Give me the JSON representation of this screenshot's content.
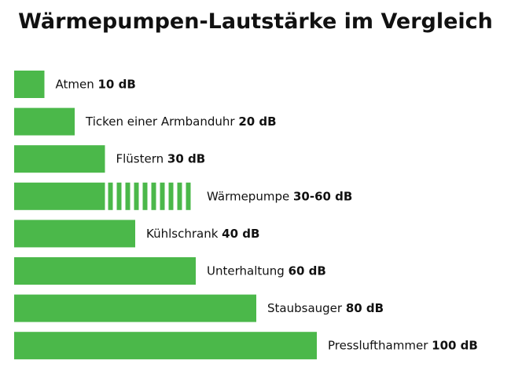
{
  "colors": {
    "bar": "#4bb84a",
    "text": "#111111",
    "background": "#ffffff"
  },
  "chart_data": {
    "type": "bar",
    "orientation": "horizontal",
    "title": "Wärmepumpen-Lautstärke im Vergleich",
    "unit": "dB",
    "bars": [
      {
        "name": "Atmen",
        "value": 10,
        "value_label": "10 dB"
      },
      {
        "name": "Ticken einer Armbanduhr",
        "value": 20,
        "value_label": "20 dB"
      },
      {
        "name": "Flüstern",
        "value": 30,
        "value_label": "30 dB"
      },
      {
        "name": "Wärmepumpe",
        "value": 30,
        "range_max": 60,
        "value_label": "30-60 dB"
      },
      {
        "name": "Kühlschrank",
        "value": 40,
        "value_label": "40 dB"
      },
      {
        "name": "Unterhaltung",
        "value": 60,
        "value_label": "60 dB"
      },
      {
        "name": "Staubsauger",
        "value": 80,
        "value_label": "80 dB"
      },
      {
        "name": "Presslufthammer",
        "value": 100,
        "value_label": "100 dB"
      }
    ],
    "xlim": [
      0,
      100
    ],
    "grid": false,
    "legend": "none"
  }
}
